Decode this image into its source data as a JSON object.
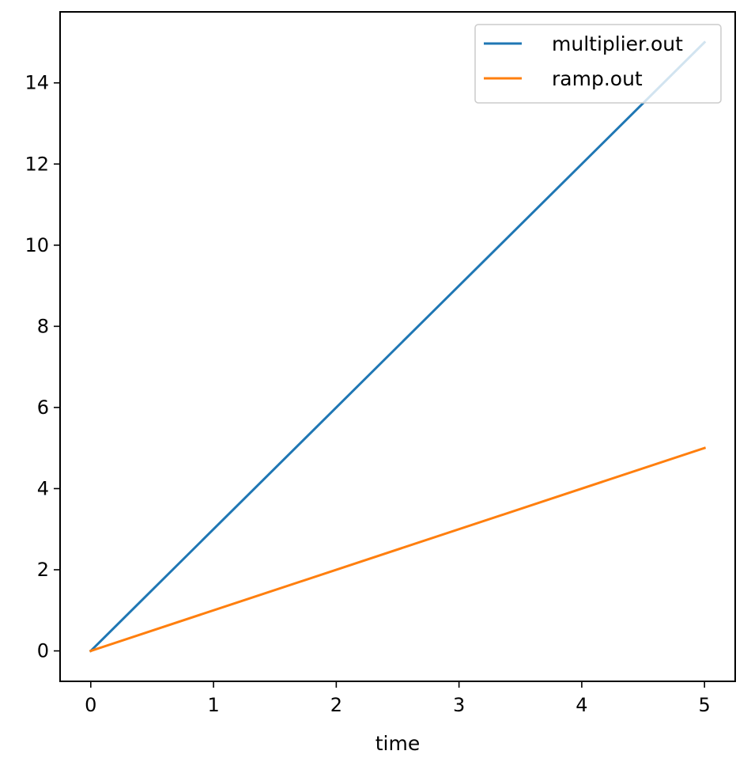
{
  "chart_data": {
    "type": "line",
    "title": "",
    "xlabel": "time",
    "ylabel": "",
    "xlim": [
      -0.25,
      5.25
    ],
    "ylim": [
      -0.75,
      15.75
    ],
    "xticks": [
      0,
      1,
      2,
      3,
      4,
      5
    ],
    "yticks": [
      0,
      2,
      4,
      6,
      8,
      10,
      12,
      14
    ],
    "grid": false,
    "legend_position": "top-right",
    "series": [
      {
        "name": "multiplier.out",
        "color": "#1f77b4",
        "x": [
          0,
          5
        ],
        "y": [
          0,
          15
        ]
      },
      {
        "name": "ramp.out",
        "color": "#ff7f0e",
        "x": [
          0,
          5
        ],
        "y": [
          0,
          5
        ]
      }
    ]
  }
}
